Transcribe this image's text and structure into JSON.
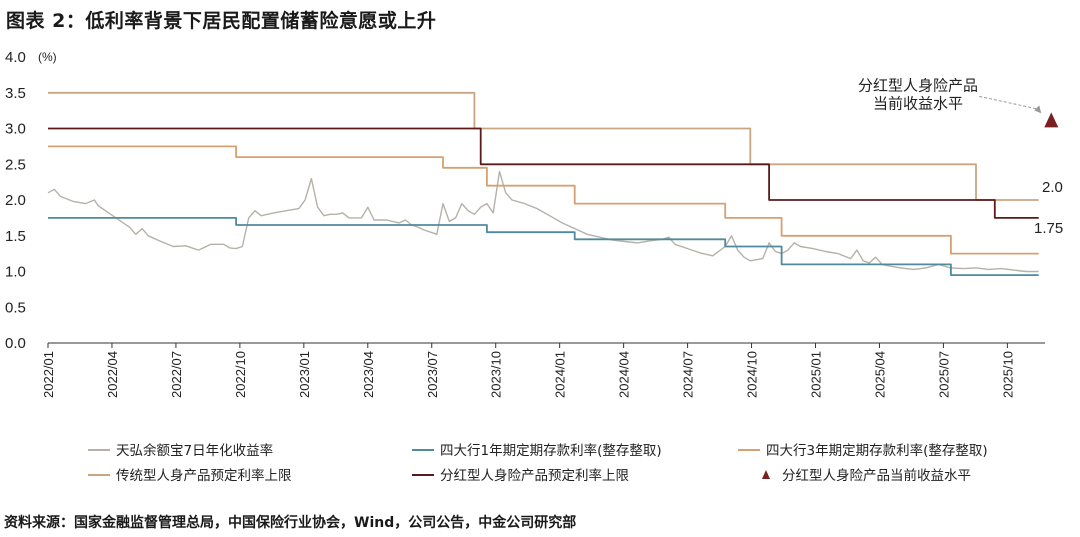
{
  "title": "图表 2：低利率背景下居民配置储蓄险意愿或上升",
  "source": "资料来源：国家金融监督管理总局，中国保险行业协会，Wind，公司公告，中金公司研究部",
  "chart_data": {
    "type": "line",
    "unit": "(%)",
    "ylim": [
      0,
      4
    ],
    "yticks": [
      "4.0",
      "3.5",
      "3.0",
      "2.5",
      "2.0",
      "1.5",
      "1.0",
      "0.5",
      "0.0"
    ],
    "xticks": [
      "2022/01",
      "2022/04",
      "2022/07",
      "2022/10",
      "2023/01",
      "2023/04",
      "2023/07",
      "2023/10",
      "2024/01",
      "2024/04",
      "2024/07",
      "2024/10",
      "2025/01",
      "2025/04",
      "2025/07",
      "2025/10"
    ],
    "xrange_months": [
      0,
      47.5
    ],
    "series": [
      {
        "name": "天弘余额宝7日年化收益率",
        "color": "#b5b1a8",
        "style": "smooth",
        "points": [
          [
            0,
            2.1
          ],
          [
            0.5,
            2.15
          ],
          [
            1,
            2.05
          ],
          [
            2,
            1.98
          ],
          [
            3,
            1.95
          ],
          [
            3.7,
            2.0
          ],
          [
            4,
            1.92
          ],
          [
            5,
            1.8
          ],
          [
            6,
            1.68
          ],
          [
            6.5,
            1.62
          ],
          [
            7,
            1.52
          ],
          [
            7.5,
            1.6
          ],
          [
            8,
            1.5
          ],
          [
            9,
            1.42
          ],
          [
            10,
            1.35
          ],
          [
            11,
            1.36
          ],
          [
            12,
            1.3
          ],
          [
            13,
            1.38
          ],
          [
            14,
            1.38
          ],
          [
            14.5,
            1.33
          ],
          [
            15,
            1.32
          ],
          [
            15.5,
            1.35
          ],
          [
            16,
            1.75
          ],
          [
            16.5,
            1.85
          ],
          [
            17,
            1.78
          ],
          [
            18,
            1.82
          ],
          [
            19,
            1.85
          ],
          [
            20,
            1.88
          ],
          [
            20.5,
            2.0
          ],
          [
            21,
            2.3
          ],
          [
            21.5,
            1.9
          ],
          [
            22,
            1.78
          ],
          [
            22.5,
            1.8
          ],
          [
            23,
            1.8
          ],
          [
            23.5,
            1.82
          ],
          [
            24,
            1.75
          ],
          [
            25,
            1.75
          ],
          [
            25.5,
            1.9
          ],
          [
            26,
            1.72
          ],
          [
            27,
            1.72
          ],
          [
            28,
            1.68
          ],
          [
            28.5,
            1.72
          ],
          [
            29,
            1.65
          ],
          [
            29.5,
            1.62
          ],
          [
            30,
            1.58
          ],
          [
            31,
            1.52
          ],
          [
            31.5,
            1.95
          ],
          [
            32,
            1.7
          ],
          [
            32.5,
            1.75
          ],
          [
            33,
            1.95
          ],
          [
            33.5,
            1.85
          ],
          [
            34,
            1.8
          ],
          [
            34.5,
            1.9
          ],
          [
            35,
            1.95
          ],
          [
            35.5,
            1.82
          ],
          [
            36,
            2.4
          ],
          [
            36.5,
            2.1
          ],
          [
            37,
            2.0
          ],
          [
            38,
            1.95
          ],
          [
            39,
            1.88
          ],
          [
            40,
            1.78
          ],
          [
            41,
            1.68
          ],
          [
            42,
            1.6
          ],
          [
            43,
            1.52
          ],
          [
            44,
            1.48
          ],
          [
            45,
            1.44
          ],
          [
            46,
            1.42
          ],
          [
            47,
            1.4
          ],
          [
            48,
            1.43
          ],
          [
            49,
            1.45
          ],
          [
            49.5,
            1.48
          ],
          [
            50,
            1.38
          ],
          [
            51,
            1.32
          ],
          [
            52,
            1.26
          ],
          [
            53,
            1.22
          ],
          [
            54,
            1.35
          ],
          [
            54.5,
            1.5
          ],
          [
            55,
            1.3
          ],
          [
            55.5,
            1.2
          ],
          [
            56,
            1.15
          ],
          [
            57,
            1.18
          ],
          [
            57.5,
            1.4
          ],
          [
            58,
            1.28
          ],
          [
            58.5,
            1.25
          ],
          [
            59,
            1.3
          ],
          [
            59.5,
            1.4
          ],
          [
            60,
            1.35
          ],
          [
            61,
            1.32
          ],
          [
            62,
            1.28
          ],
          [
            63,
            1.25
          ],
          [
            64,
            1.18
          ],
          [
            64.5,
            1.3
          ],
          [
            65,
            1.15
          ],
          [
            65.5,
            1.12
          ],
          [
            66,
            1.2
          ],
          [
            66.5,
            1.1
          ],
          [
            67,
            1.08
          ],
          [
            68,
            1.05
          ],
          [
            69,
            1.03
          ],
          [
            70,
            1.05
          ],
          [
            71,
            1.1
          ],
          [
            72,
            1.05
          ],
          [
            73,
            1.04
          ],
          [
            74,
            1.05
          ],
          [
            75,
            1.03
          ],
          [
            76,
            1.04
          ],
          [
            77,
            1.02
          ],
          [
            78,
            1.0
          ],
          [
            79,
            1.0
          ]
        ]
      },
      {
        "name": "四大行1年期定期存款利率(整存整取)",
        "color": "#4f8a9e",
        "style": "step",
        "points": [
          [
            0,
            1.75
          ],
          [
            15,
            1.75
          ],
          [
            15,
            1.65
          ],
          [
            35,
            1.65
          ],
          [
            35,
            1.55
          ],
          [
            42,
            1.55
          ],
          [
            42,
            1.45
          ],
          [
            54,
            1.45
          ],
          [
            54,
            1.35
          ],
          [
            58.5,
            1.35
          ],
          [
            58.5,
            1.1
          ],
          [
            72,
            1.1
          ],
          [
            72,
            0.95
          ],
          [
            79,
            0.95
          ]
        ]
      },
      {
        "name": "四大行3年期定期存款利率(整存整取)",
        "color": "#d6a070",
        "style": "step",
        "points": [
          [
            0,
            2.75
          ],
          [
            15,
            2.75
          ],
          [
            15,
            2.6
          ],
          [
            31.5,
            2.6
          ],
          [
            31.5,
            2.45
          ],
          [
            35,
            2.45
          ],
          [
            35,
            2.2
          ],
          [
            42,
            2.2
          ],
          [
            42,
            1.95
          ],
          [
            54,
            1.95
          ],
          [
            54,
            1.75
          ],
          [
            58.5,
            1.75
          ],
          [
            58.5,
            1.5
          ],
          [
            72,
            1.5
          ],
          [
            72,
            1.25
          ],
          [
            79,
            1.25
          ]
        ]
      },
      {
        "name": "传统型人身产品预定利率上限",
        "color": "#c9a680",
        "style": "step",
        "points": [
          [
            0,
            3.5
          ],
          [
            34,
            3.5
          ],
          [
            34,
            3.0
          ],
          [
            56,
            3.0
          ],
          [
            56,
            2.5
          ],
          [
            74,
            2.5
          ],
          [
            74,
            2.0
          ],
          [
            79,
            2.0
          ]
        ]
      },
      {
        "name": "分红型人身险产品预定利率上限",
        "color": "#5a1a1a",
        "style": "step",
        "points": [
          [
            0,
            3.0
          ],
          [
            34.5,
            3.0
          ],
          [
            34.5,
            2.5
          ],
          [
            57.5,
            2.5
          ],
          [
            57.5,
            2.0
          ],
          [
            75.5,
            2.0
          ],
          [
            75.5,
            1.75
          ],
          [
            79,
            1.75
          ]
        ]
      },
      {
        "name": "分红型人身险产品当前收益水平",
        "color": "#7a2020",
        "style": "marker",
        "points": [
          [
            80,
            3.1
          ]
        ]
      }
    ],
    "annotations": [
      {
        "text": "分红型人身险产品",
        "y": 3.6
      },
      {
        "text": "当前收益水平",
        "y": 3.35
      },
      {
        "text": "2.0",
        "y": 2.0
      },
      {
        "text": "1.75",
        "y": 1.75
      }
    ]
  }
}
